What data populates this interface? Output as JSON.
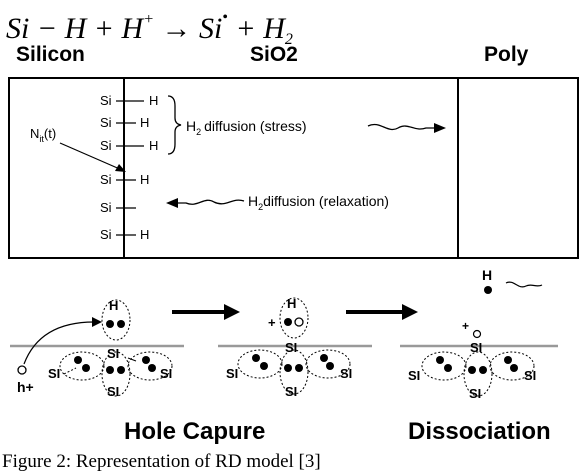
{
  "equation": {
    "si": "Si",
    "minus": "−",
    "h1": "H",
    "plus1": "+",
    "h2": "H",
    "h2_charge": "+",
    "arrow": "→",
    "si2": "Si",
    "bullet": "•",
    "plus2": "+",
    "h3": "H",
    "h3_sub": "2"
  },
  "regions": {
    "silicon": "Silicon",
    "sio2": "SiO2",
    "poly": "Poly"
  },
  "interface": {
    "si_rows": [
      "Si",
      "Si",
      "Si",
      "Si",
      "Si",
      "Si"
    ],
    "h_bonds": [
      "H",
      "H",
      "H",
      "H",
      "",
      "H"
    ],
    "nit_label": "N",
    "nit_sub": "it",
    "nit_arg": "(t)",
    "diffusion_stress_h": "H",
    "diffusion_stress_sub": "2",
    "diffusion_stress_text": "diffusion (stress)",
    "diffusion_relax_h": "H",
    "diffusion_relax_sub": "2",
    "diffusion_relax_text": "diffusion (relaxation)"
  },
  "mechanism": {
    "hole_label": "h+",
    "si_atom": "SI",
    "h_atom": "H",
    "plus": "+",
    "stage1": "Hole Capure",
    "stage2": "Dissociation"
  },
  "caption": "Figure 2: Representation of RD model [3]"
}
